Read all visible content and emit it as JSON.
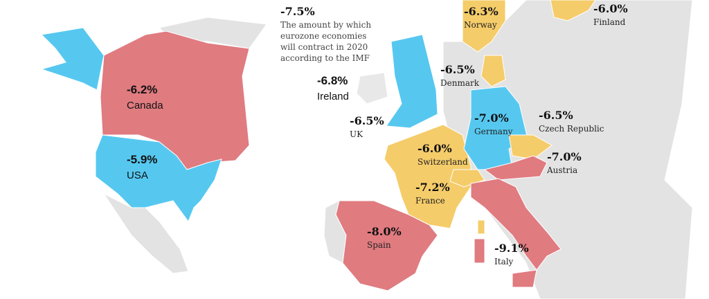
{
  "headline": {
    "value": "-7.5%",
    "note": [
      "The amount by which",
      "eurozone economies",
      "will contract in 2020",
      "according to the IMF"
    ]
  },
  "regions": [
    {
      "name": "Canada",
      "value": "-6.2%"
    },
    {
      "name": "USA",
      "value": "-5.9%"
    },
    {
      "name": "Norway",
      "value": "-6.3%"
    },
    {
      "name": "Finland",
      "value": "-6.0%"
    },
    {
      "name": "Ireland",
      "value": "-6.8%"
    },
    {
      "name": "Denmark",
      "value": "-6.5%"
    },
    {
      "name": "UK",
      "value": "-6.5%"
    },
    {
      "name": "Germany",
      "value": "-7.0%"
    },
    {
      "name": "Czech Republic",
      "value": "-6.5%"
    },
    {
      "name": "Switzerland",
      "value": "-6.0%"
    },
    {
      "name": "Austria",
      "value": "-7.0%"
    },
    {
      "name": "France",
      "value": "-7.2%"
    },
    {
      "name": "Spain",
      "value": "-8.0%"
    },
    {
      "name": "Italy",
      "value": "-9.1%"
    }
  ]
}
